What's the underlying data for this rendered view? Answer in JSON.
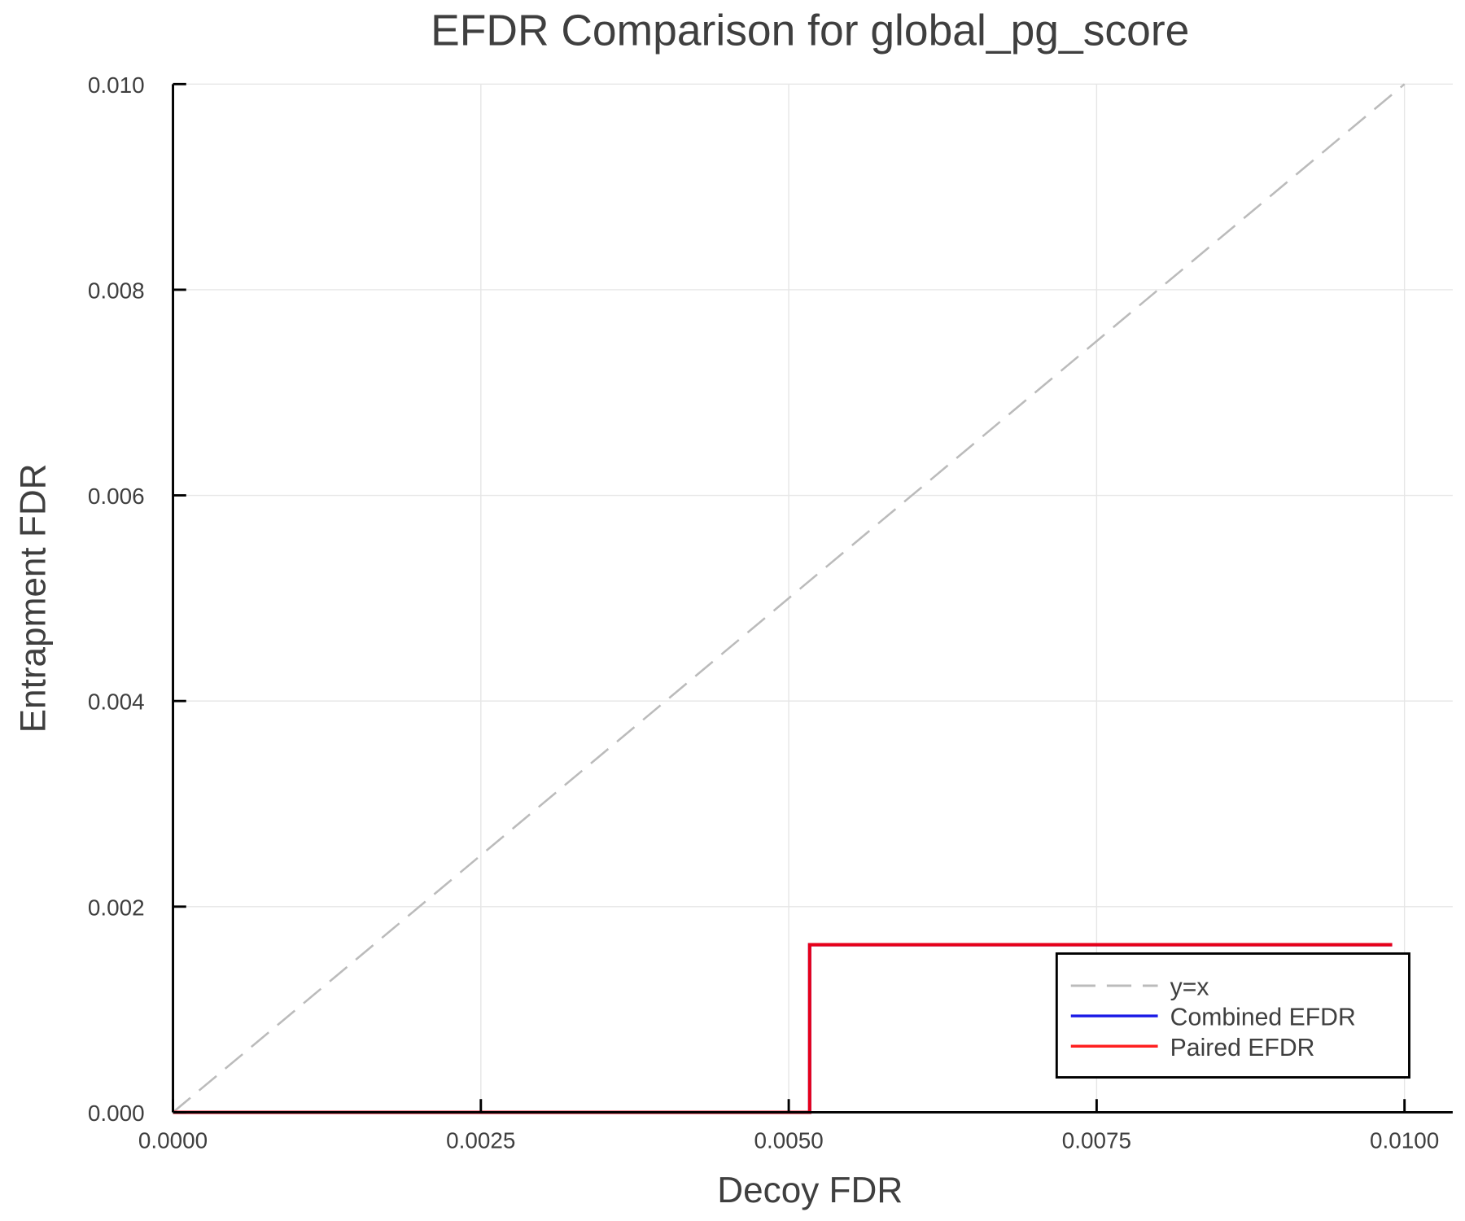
{
  "chart_data": {
    "type": "line",
    "title": "EFDR Comparison for global_pg_score",
    "xlabel": "Decoy FDR",
    "ylabel": "Entrapment FDR",
    "xlim": [
      0,
      0.0104
    ],
    "ylim": [
      0,
      0.01
    ],
    "xticks": [
      "0.0000",
      "0.0025",
      "0.0050",
      "0.0075",
      "0.0100"
    ],
    "xtick_values": [
      0,
      0.0025,
      0.005,
      0.0075,
      0.01
    ],
    "yticks": [
      "0.000",
      "0.002",
      "0.004",
      "0.006",
      "0.008",
      "0.010"
    ],
    "ytick_values": [
      0,
      0.002,
      0.004,
      0.006,
      0.008,
      0.01
    ],
    "grid": true,
    "legend_position": "bottom-right",
    "series": [
      {
        "name": "y=x",
        "color": "#bbbbbb",
        "style": "dashed",
        "x": [
          0,
          0.01
        ],
        "y": [
          0,
          0.01
        ]
      },
      {
        "name": "Combined EFDR",
        "color": "#1a1ae6",
        "style": "solid",
        "step": true,
        "x": [
          0,
          0.00517,
          0.00517,
          0.0099
        ],
        "y": [
          0,
          0,
          0.00163,
          0.00163
        ]
      },
      {
        "name": "Paired EFDR",
        "color": "#e6001a",
        "style": "solid",
        "step": true,
        "x": [
          0,
          0.00517,
          0.00517,
          0.0099
        ],
        "y": [
          0,
          0,
          0.00163,
          0.00163
        ]
      }
    ]
  },
  "legend": {
    "items": [
      {
        "label": "y=x",
        "color": "#bbbbbb"
      },
      {
        "label": "Combined EFDR",
        "color": "#1a1ae6"
      },
      {
        "label": "Paired EFDR",
        "color": "#ff2020"
      }
    ]
  }
}
